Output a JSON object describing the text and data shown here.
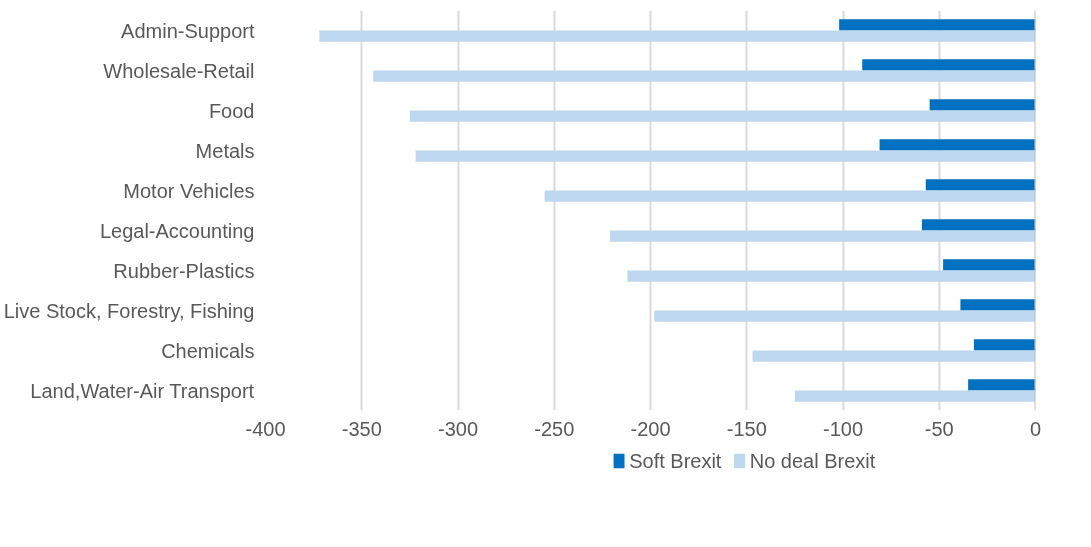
{
  "chart_data": {
    "type": "bar",
    "orientation": "horizontal",
    "categories": [
      "Admin-Support",
      "Wholesale-Retail",
      "Food",
      "Metals",
      "Motor Vehicles",
      "Legal-Accounting",
      "Rubber-Plastics",
      "Live Stock, Forestry, Fishing",
      "Chemicals",
      "Land,Water-Air Transport"
    ],
    "series": [
      {
        "name": "Soft Brexit",
        "color": "#0070c0",
        "values": [
          -102,
          -90,
          -55,
          -81,
          -57,
          -59,
          -48,
          -39,
          -32,
          -35
        ]
      },
      {
        "name": "No deal Brexit",
        "color": "#bdd7ee",
        "values": [
          -372,
          -344,
          -325,
          -322,
          -255,
          -221,
          -212,
          -198,
          -147,
          -125
        ]
      }
    ],
    "xlim": [
      -400,
      0
    ],
    "xticks": [
      -400,
      -350,
      -300,
      -250,
      -200,
      -150,
      -100,
      -50,
      0
    ],
    "grid": "x",
    "legend": "bottom"
  }
}
